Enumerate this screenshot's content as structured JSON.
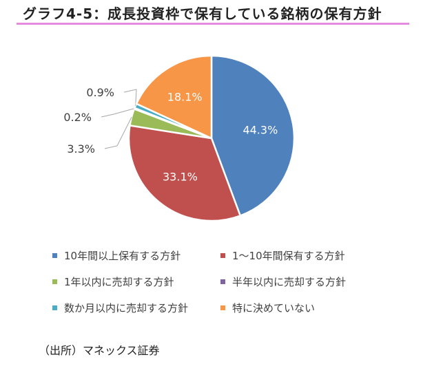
{
  "title": "グラフ4-5：成長投資枠で保有している銘柄の保有方針",
  "source": "（出所）マネックス証券",
  "chart_data": {
    "type": "pie",
    "slices": [
      {
        "label": "10年間以上保有する方針",
        "value": 44.3,
        "value_label": "44.3%",
        "color": "#4f81bd"
      },
      {
        "label": "1～10年間保有する方針",
        "value": 33.1,
        "value_label": "33.1%",
        "color": "#c0504d"
      },
      {
        "label": "1年以内に売却する方針",
        "value": 3.3,
        "value_label": "3.3%",
        "color": "#9bbb59"
      },
      {
        "label": "半年以内に売却する方針",
        "value": 0.2,
        "value_label": "0.2%",
        "color": "#8064a2"
      },
      {
        "label": "数か月以内に売却する方針",
        "value": 0.9,
        "value_label": "0.9%",
        "color": "#4bacc6"
      },
      {
        "label": "特に決めていない",
        "value": 18.1,
        "value_label": "18.1%",
        "color": "#f79646"
      }
    ],
    "legend_position": "bottom"
  }
}
